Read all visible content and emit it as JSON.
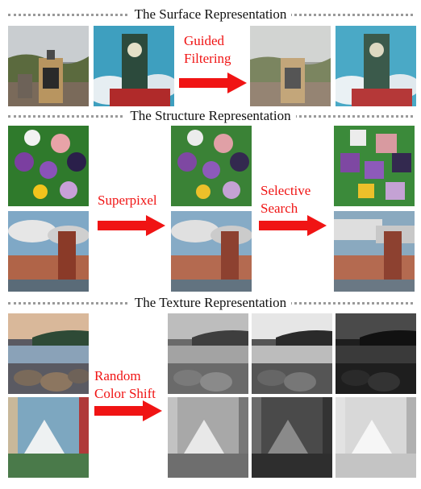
{
  "sections": {
    "surface": {
      "title": "The Surface Representation",
      "operation": [
        "Guided",
        "Filtering"
      ]
    },
    "structure": {
      "title": "The Structure Representation",
      "operation_a": "Superpixel",
      "operation_b": [
        "Selective",
        "Search"
      ]
    },
    "texture": {
      "title": "The Texture Representation",
      "operation": [
        "Random",
        "Color Shift"
      ]
    }
  },
  "colors": {
    "arrow": "#f01414",
    "label": "#f01414",
    "divider": "#9a9a9a"
  }
}
